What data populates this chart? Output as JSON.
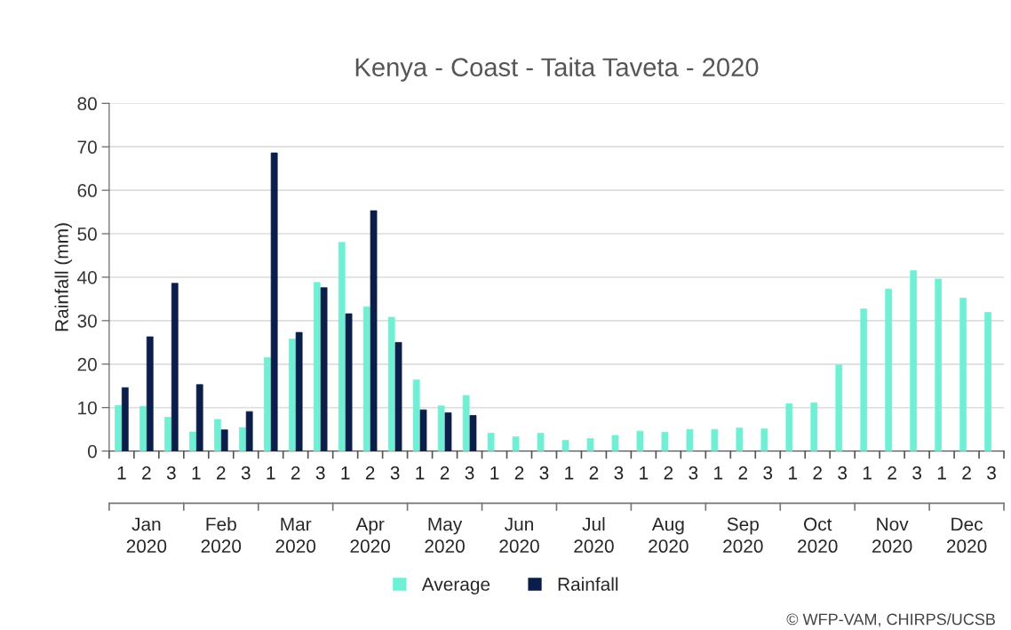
{
  "chart_data": {
    "type": "bar",
    "title": "Kenya - Coast - Taita Taveta - 2020",
    "ylabel": "Rainfall (mm)",
    "categories": [
      "1",
      "2",
      "3",
      "1",
      "2",
      "3",
      "1",
      "2",
      "3",
      "1",
      "2",
      "3",
      "1",
      "2",
      "3",
      "1",
      "2",
      "3",
      "1",
      "2",
      "3",
      "1",
      "2",
      "3",
      "1",
      "2",
      "3",
      "1",
      "2",
      "3",
      "1",
      "2",
      "3",
      "1",
      "2",
      "3"
    ],
    "series": [
      {
        "name": "Average",
        "color": "#6ff0d4",
        "values": [
          10.5,
          10.3,
          7.8,
          4.4,
          7.3,
          5.4,
          21.5,
          25.8,
          38.8,
          48,
          33.2,
          30.8,
          16.4,
          10.4,
          12.8,
          4.1,
          3.3,
          4.1,
          2.5,
          2.9,
          3.6,
          4.6,
          4.3,
          5.0,
          5.0,
          5.3,
          5.1,
          10.9,
          11.1,
          19.8,
          32.7,
          37.3,
          41.5,
          39.6,
          35.2,
          31.9
        ]
      },
      {
        "name": "Rainfall",
        "color": "#0b1d4a",
        "values": [
          14.6,
          26.3,
          38.6,
          15.3,
          4.9,
          9.1,
          68.6,
          27.3,
          37.6,
          31.6,
          55.3,
          25.0,
          9.5,
          8.8,
          8.2,
          null,
          null,
          null,
          null,
          null,
          null,
          null,
          null,
          null,
          null,
          null,
          null,
          null,
          null,
          null,
          null,
          null,
          null,
          null,
          null,
          null
        ]
      }
    ],
    "ylim": [
      0,
      80
    ],
    "yticks": [
      0,
      10,
      20,
      30,
      40,
      50,
      60,
      70,
      80
    ],
    "grid": "y",
    "legend": "bottom",
    "annotations": [
      "Jan\n2020",
      "Feb\n2020",
      "Mar\n2020",
      "Apr\n2020",
      "May\n2020",
      "Jun\n2020",
      "Jul\n2020",
      "Aug\n2020",
      "Sep\n2020",
      "Oct\n2020",
      "Nov\n2020",
      "Dec\n2020",
      "© WFP-VAM, CHIRPS/UCSB"
    ]
  }
}
